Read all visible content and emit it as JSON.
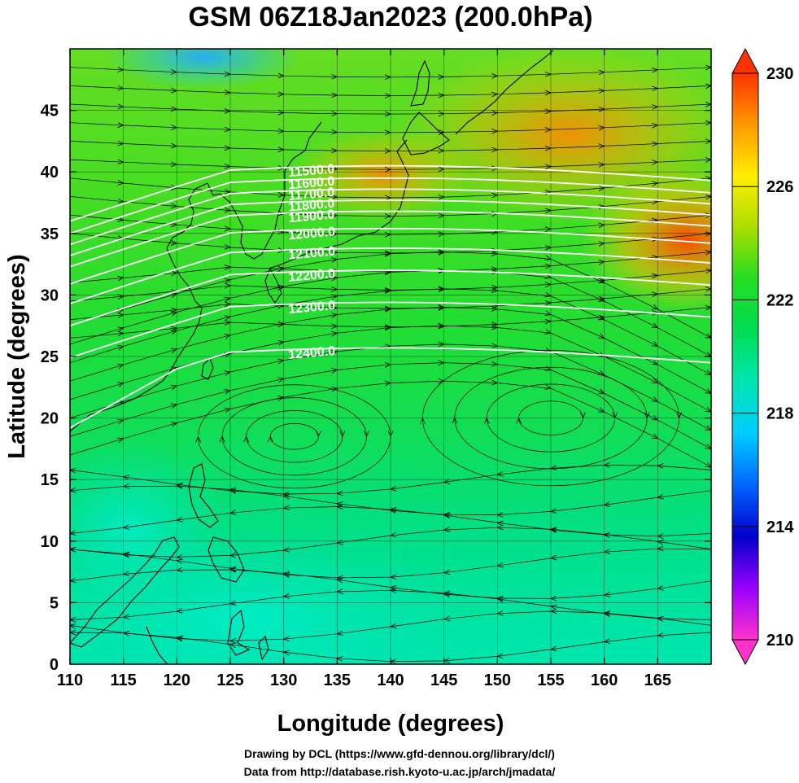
{
  "title": "GSM 06Z18Jan2023 (200.0hPa)",
  "xlabel": "Longitude (degrees)",
  "ylabel": "Latitude  (degrees)",
  "credits": {
    "line1": "Drawing by DCL (https://www.gfd-dennou.org/library/dcl/)",
    "line2": "Data from http://database.rish.kyoto-u.ac.jp/arch/jmadata/"
  },
  "map": {
    "lon_range": [
      110,
      170
    ],
    "lat_range": [
      0,
      50
    ],
    "lon_ticks": [
      110,
      115,
      120,
      125,
      130,
      135,
      140,
      145,
      150,
      155,
      160,
      165
    ],
    "lat_ticks": [
      0,
      5,
      10,
      15,
      20,
      25,
      30,
      35,
      40,
      45
    ],
    "field": "temperature",
    "overlays": [
      "geopotential-height-contours",
      "wind-streamlines",
      "coastlines"
    ]
  },
  "colorbar": {
    "min": 210,
    "max": 230,
    "tick_labels": [
      "230",
      "226",
      "222",
      "218",
      "214",
      "210"
    ],
    "stops": [
      "#ff33cc",
      "#9900ff",
      "#0000cc",
      "#0066ff",
      "#00ccff",
      "#00e6b0",
      "#00dd55",
      "#22dd22",
      "#aadd00",
      "#ffee00",
      "#ff9900",
      "#ff3300"
    ]
  },
  "contours": [
    {
      "label": "11500.0",
      "label_lat": 39.3
    },
    {
      "label": "11600.0",
      "label_lat": 38.3
    },
    {
      "label": "11700.0",
      "label_lat": 37.4
    },
    {
      "label": "11800.0",
      "label_lat": 36.5
    },
    {
      "label": "11900.0",
      "label_lat": 35.6
    },
    {
      "label": "12000.0",
      "label_lat": 34.2
    },
    {
      "label": "12100.0",
      "label_lat": 32.6
    },
    {
      "label": "12200.0",
      "label_lat": 30.8
    },
    {
      "label": "12300.0",
      "label_lat": 28.2
    },
    {
      "label": "12400.0",
      "label_lat": 24.5
    }
  ]
}
